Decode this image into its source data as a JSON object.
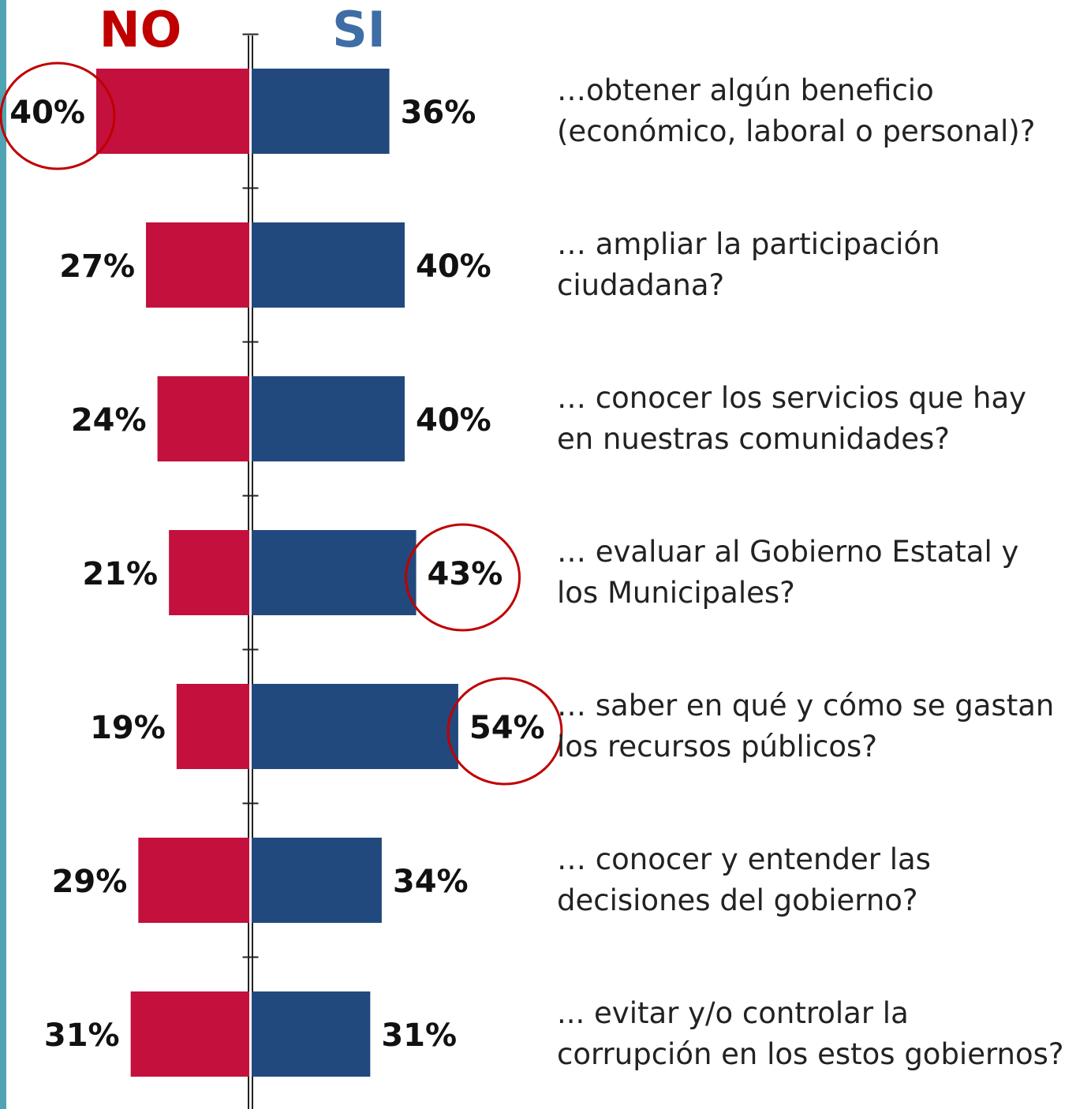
{
  "chart_data": {
    "type": "diverging-bar",
    "categories": [
      "…obtener algún beneficio\n(económico, laboral o personal)?",
      "… ampliar la participación\nciudadana?",
      "… conocer los servicios que hay\nen nuestras comunidades?",
      "… evaluar al Gobierno Estatal  y\nlos Municipales?",
      "… saber en qué y cómo se gastan\nlos recursos públicos?",
      "… conocer y entender las\ndecisiones del gobierno?",
      "... evitar  y/o controlar la\ncorrupción en los estos  gobiernos?"
    ],
    "series": [
      {
        "name": "NO",
        "color": "#c3103c",
        "side": "left",
        "values": [
          40,
          27,
          24,
          21,
          19,
          29,
          31
        ],
        "value_labels": [
          "40%",
          "27%",
          "24%",
          "21%",
          "19%",
          "29%",
          "31%"
        ],
        "highlight": [
          0
        ]
      },
      {
        "name": "SI",
        "color": "#21497d",
        "side": "right",
        "values": [
          36,
          40,
          40,
          43,
          54,
          34,
          31
        ],
        "value_labels": [
          "36%",
          "40%",
          "40%",
          "43%",
          "54%",
          "34%",
          "31%"
        ],
        "highlight": [
          3,
          4
        ]
      }
    ]
  }
}
